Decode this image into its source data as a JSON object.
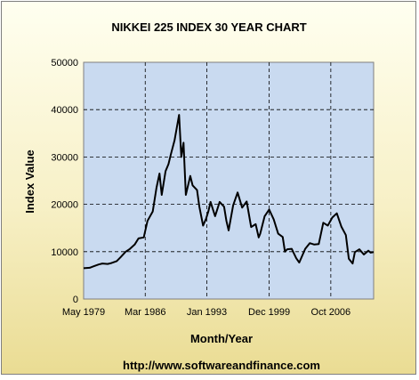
{
  "chart_data": {
    "type": "line",
    "title": "NIKKEI 225 INDEX 30 YEAR CHART",
    "xlabel": "Month/Year",
    "ylabel": "Index Value",
    "footer": "http://www.softwareandfinance.com",
    "x_tick_labels": [
      "May 1979",
      "Mar 1986",
      "Jan 1993",
      "Dec 1999",
      "Oct 2006"
    ],
    "x_range": [
      "May 1979",
      "Jul 2011"
    ],
    "y_ticks": [
      "0",
      "10000",
      "20000",
      "30000",
      "40000",
      "50000"
    ],
    "ylim": [
      0,
      50000
    ],
    "grid": true,
    "colors": {
      "plot_background": "#c9daf0",
      "line": "#000000",
      "grid": "#000000",
      "frame_gradient_top": "#fffff0",
      "frame_gradient_bottom": "#eadc93"
    },
    "series": [
      {
        "x": [
          "1979-05",
          "1980-01",
          "1980-06",
          "1981-01",
          "1981-06",
          "1982-01",
          "1982-06",
          "1983-01",
          "1983-06",
          "1984-01",
          "1984-06",
          "1985-01",
          "1985-06",
          "1986-01",
          "1986-06",
          "1987-01",
          "1987-06",
          "1987-10",
          "1988-01",
          "1988-06",
          "1988-10",
          "1989-01",
          "1989-06",
          "1989-12",
          "1990-03",
          "1990-06",
          "1990-09",
          "1990-12",
          "1991-03",
          "1991-06",
          "1991-12",
          "1992-03",
          "1992-08",
          "1992-12",
          "1993-03",
          "1993-06",
          "1993-12",
          "1994-06",
          "1994-12",
          "1995-03",
          "1995-06",
          "1995-12",
          "1996-06",
          "1996-12",
          "1997-06",
          "1997-12",
          "1998-06",
          "1998-10",
          "1998-12",
          "1999-06",
          "1999-12",
          "2000-06",
          "2000-12",
          "2001-06",
          "2001-09",
          "2001-12",
          "2002-06",
          "2002-12",
          "2003-04",
          "2003-12",
          "2004-06",
          "2004-12",
          "2005-06",
          "2005-12",
          "2006-06",
          "2006-12",
          "2007-06",
          "2007-12",
          "2008-06",
          "2008-10",
          "2009-03",
          "2009-06",
          "2009-12",
          "2010-06",
          "2010-12",
          "2011-03",
          "2011-07"
        ],
        "values": [
          6500,
          6600,
          6900,
          7300,
          7500,
          7400,
          7600,
          8000,
          8800,
          10000,
          10500,
          11500,
          12800,
          13000,
          16500,
          18500,
          23500,
          26500,
          22000,
          27000,
          28500,
          30500,
          33500,
          38900,
          30000,
          33000,
          22000,
          24000,
          26000,
          24000,
          23000,
          19500,
          15500,
          17000,
          18500,
          20500,
          17500,
          20500,
          19500,
          16500,
          14500,
          19800,
          22500,
          19300,
          20600,
          15200,
          15800,
          13000,
          13800,
          17500,
          18900,
          16800,
          13800,
          13100,
          10000,
          10500,
          10600,
          8600,
          7700,
          10600,
          11800,
          11500,
          11600,
          16100,
          15500,
          17200,
          18100,
          15300,
          13500,
          8500,
          7500,
          9900,
          10500,
          9400,
          10200,
          9800,
          9900
        ]
      }
    ]
  }
}
